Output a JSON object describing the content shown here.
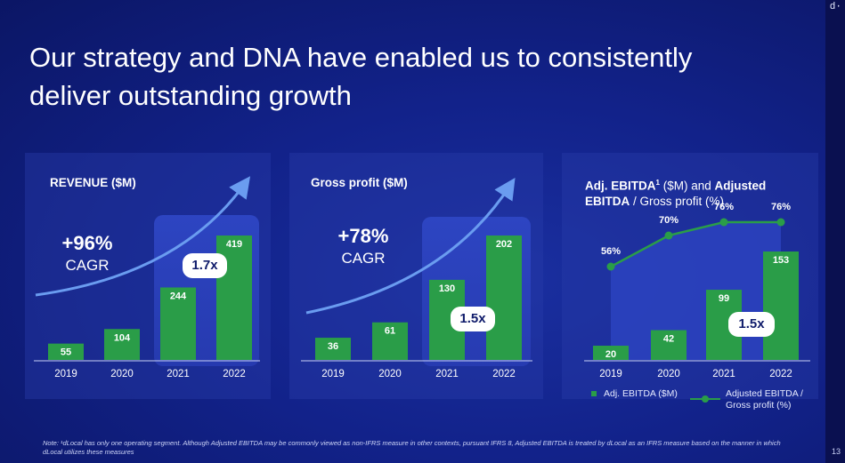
{
  "logo": "d·",
  "page_number": "13",
  "headline": "Our strategy and DNA have enabled us to consistently deliver outstanding growth",
  "colors": {
    "bar": "#2a9d48",
    "arrow": "#6a9cf0",
    "highlight": "#2a3fb8"
  },
  "note": "Note: ¹dLocal has only one operating segment. Although Adjusted EBITDA may be commonly viewed as non-IFRS measure in other contexts, pursuant IFRS 8, Adjusted EBITDA is treated by dLocal as an IFRS measure  based on the manner in which dLocal utilizes these measures",
  "revenue": {
    "title": "REVENUE ($M)",
    "cagr_value": "+96%",
    "cagr_label": "CAGR",
    "multiplier": "1.7x"
  },
  "gross_profit": {
    "title": "Gross profit ($M)",
    "cagr_value": "+78%",
    "cagr_label": "CAGR",
    "multiplier": "1.5x"
  },
  "ebitda": {
    "title_bold1": "Adj. EBITDA",
    "title_sup": "1",
    "title_rest1": " ($M) and ",
    "title_bold2": "Adjusted",
    "title_line2_bold": "EBITDA",
    "title_line2_rest": " / Gross profit (%)",
    "multiplier": "1.5x",
    "legend_bar": "Adj. EBITDA ($M)",
    "legend_line1": "Adjusted EBITDA /",
    "legend_line2": "Gross profit (%)"
  },
  "chart_data": [
    {
      "type": "bar",
      "title": "REVENUE ($M)",
      "categories": [
        "2019",
        "2020",
        "2021",
        "2022"
      ],
      "values": [
        55,
        104,
        244,
        419
      ],
      "annotations": [
        "+96% CAGR",
        "1.7x"
      ]
    },
    {
      "type": "bar",
      "title": "Gross profit ($M)",
      "categories": [
        "2019",
        "2020",
        "2021",
        "2022"
      ],
      "values": [
        36,
        61,
        130,
        202
      ],
      "annotations": [
        "+78% CAGR",
        "1.5x"
      ]
    },
    {
      "type": "bar+line",
      "title": "Adj. EBITDA ($M) and Adjusted EBITDA / Gross profit (%)",
      "categories": [
        "2019",
        "2020",
        "2021",
        "2022"
      ],
      "series": [
        {
          "name": "Adj. EBITDA ($M)",
          "type": "bar",
          "values": [
            20,
            42,
            99,
            153
          ]
        },
        {
          "name": "Adjusted EBITDA / Gross profit (%)",
          "type": "line",
          "values": [
            56,
            70,
            76,
            76
          ],
          "labels": [
            "56%",
            "70%",
            "76%",
            "76%"
          ]
        }
      ],
      "annotations": [
        "1.5x"
      ]
    }
  ]
}
